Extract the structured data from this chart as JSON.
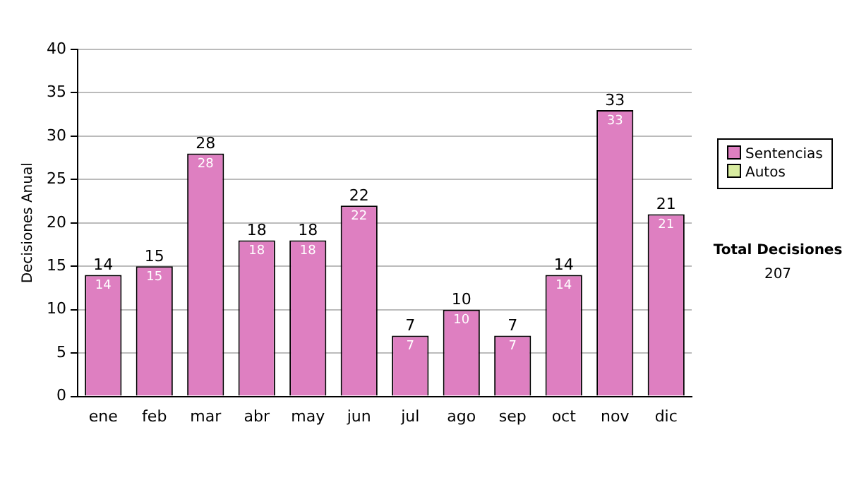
{
  "chart_data": {
    "type": "bar",
    "ylabel": "Decisiones Anual",
    "categories": [
      "ene",
      "feb",
      "mar",
      "abr",
      "may",
      "jun",
      "jul",
      "ago",
      "sep",
      "oct",
      "nov",
      "dic"
    ],
    "stacked": true,
    "series": [
      {
        "name": "Sentencias",
        "color": "#de7fc1",
        "values": [
          14,
          15,
          28,
          18,
          18,
          22,
          7,
          10,
          7,
          14,
          33,
          21
        ],
        "value_labels": [
          "14",
          "15",
          "28",
          "18",
          "18",
          "22",
          "7",
          "10",
          "7",
          "14",
          "33",
          "21"
        ]
      },
      {
        "name": "Autos",
        "color": "#d8eca0",
        "values": [
          0,
          0,
          0,
          0,
          0,
          0,
          0,
          0,
          0,
          0,
          0,
          0
        ]
      }
    ],
    "totals": [
      "14",
      "15",
      "28",
      "18",
      "18",
      "22",
      "7",
      "10",
      "7",
      "14",
      "33",
      "21"
    ],
    "ylim": [
      0,
      40
    ],
    "yticks": [
      0,
      5,
      10,
      15,
      20,
      25,
      30,
      35,
      40
    ],
    "grid": "y",
    "legend": "right",
    "annotations": [
      "Total Decisiones",
      "207"
    ]
  }
}
